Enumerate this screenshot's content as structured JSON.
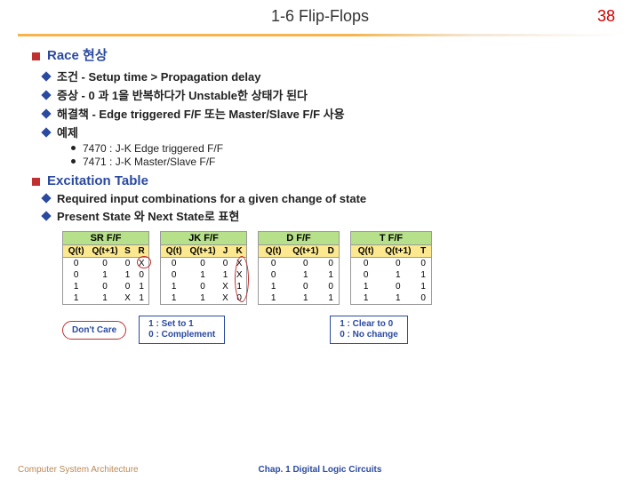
{
  "page": {
    "title": "1-6  Flip-Flops",
    "number": "38"
  },
  "section1": {
    "heading": "Race 현상",
    "items": [
      "조건 - Setup time > Propagation delay",
      "증상 - 0 과 1을 반복하다가 Unstable한 상태가 된다",
      "해결책 - Edge triggered F/F 또는 Master/Slave F/F 사용",
      "예제"
    ],
    "sub": [
      "7470 : J-K Edge triggered F/F",
      "7471 : J-K Master/Slave F/F"
    ]
  },
  "section2": {
    "heading": "Excitation Table",
    "items": [
      "Required input combinations for a given change of state",
      "Present State 와 Next State로 표현"
    ]
  },
  "tables": {
    "sr": {
      "title": "SR F/F",
      "cols": [
        "Q(t)",
        "Q(t+1)",
        "S",
        "R"
      ],
      "widths": [
        30,
        36,
        16,
        16
      ],
      "rows": [
        [
          "0",
          "0",
          "0",
          "X"
        ],
        [
          "0",
          "1",
          "1",
          "0"
        ],
        [
          "1",
          "0",
          "0",
          "1"
        ],
        [
          "1",
          "1",
          "X",
          "1"
        ]
      ]
    },
    "jk": {
      "title": "JK F/F",
      "cols": [
        "Q(t)",
        "Q(t+1)",
        "J",
        "K"
      ],
      "widths": [
        30,
        36,
        16,
        16
      ],
      "rows": [
        [
          "0",
          "0",
          "0",
          "X"
        ],
        [
          "0",
          "1",
          "1",
          "X"
        ],
        [
          "1",
          "0",
          "X",
          "1"
        ],
        [
          "1",
          "1",
          "X",
          "0"
        ]
      ]
    },
    "d": {
      "title": "D F/F",
      "cols": [
        "Q(t)",
        "Q(t+1)",
        "D"
      ],
      "widths": [
        34,
        40,
        18
      ],
      "rows": [
        [
          "0",
          "0",
          "0"
        ],
        [
          "0",
          "1",
          "1"
        ],
        [
          "1",
          "0",
          "0"
        ],
        [
          "1",
          "1",
          "1"
        ]
      ]
    },
    "t": {
      "title": "T F/F",
      "cols": [
        "Q(t)",
        "Q(t+1)",
        "T"
      ],
      "widths": [
        34,
        40,
        18
      ],
      "rows": [
        [
          "0",
          "0",
          "0"
        ],
        [
          "0",
          "1",
          "1"
        ],
        [
          "1",
          "0",
          "1"
        ],
        [
          "1",
          "1",
          "0"
        ]
      ]
    }
  },
  "legends": {
    "dontcare": "Don't Care",
    "box1": {
      "l1": "1 : Set to 1",
      "l2": "0 : Complement"
    },
    "box2": {
      "l1": "1 : Clear to 0",
      "l2": "0 : No change"
    }
  },
  "footer": {
    "left": "Computer System Architecture",
    "center": "Chap. 1  Digital Logic Circuits"
  },
  "colors": {
    "accent_red": "#c03030",
    "accent_blue": "#2a4aa0",
    "head_green": "#b7e08a",
    "sub_yellow": "#fce98f"
  }
}
